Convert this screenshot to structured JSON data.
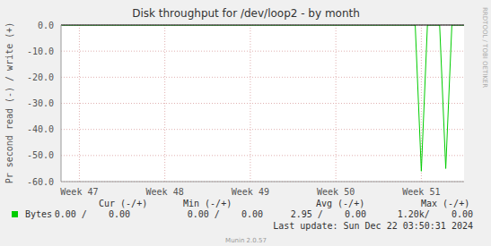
{
  "chart_data": {
    "type": "line",
    "title": "Disk throughput for /dev/loop2 - by month",
    "y_label": "Pr second read (-) / write (+)",
    "categories": [
      null,
      null,
      null,
      "Week 47",
      null,
      null,
      null,
      null,
      null,
      null,
      null,
      null,
      null,
      null,
      null,
      null,
      null,
      "Week 48",
      null,
      null,
      null,
      null,
      null,
      null,
      null,
      null,
      null,
      null,
      null,
      null,
      null,
      "Week 49",
      null,
      null,
      null,
      null,
      null,
      null,
      null,
      null,
      null,
      null,
      null,
      null,
      null,
      "Week 50",
      null,
      null,
      null,
      null,
      null,
      null,
      null,
      null,
      null,
      null,
      null,
      null,
      null,
      "Week 51",
      null,
      null,
      null,
      null,
      null,
      null,
      null
    ],
    "series": [
      {
        "name": "Bytes",
        "color": "#00cc00",
        "values": [
          0,
          0,
          0,
          0,
          0,
          0,
          0,
          0,
          0,
          0,
          0,
          0,
          0,
          0,
          0,
          0,
          0,
          0,
          0,
          0,
          0,
          0,
          0,
          0,
          0,
          0,
          0,
          0,
          0,
          0,
          0,
          0,
          0,
          0,
          0,
          0,
          0,
          0,
          0,
          0,
          0,
          0,
          0,
          0,
          0,
          0,
          0,
          0,
          0,
          0,
          0,
          0,
          0,
          0,
          0,
          0,
          0,
          0,
          0,
          -56,
          0,
          0,
          0,
          -55,
          0,
          0,
          0
        ]
      }
    ],
    "ylim": [
      -60,
      0
    ],
    "yticks": [
      {
        "value": 0,
        "label": "0.0"
      },
      {
        "value": -10,
        "label": "-10.0"
      },
      {
        "value": -20,
        "label": "-20.0"
      },
      {
        "value": -30,
        "label": "-30.0"
      },
      {
        "value": -40,
        "label": "-40.0"
      },
      {
        "value": -50,
        "label": "-50.0"
      },
      {
        "value": -60,
        "label": "-60.0"
      }
    ],
    "grid": true,
    "legend_stats": {
      "headers": [
        "Cur (-/+)",
        "Min (-/+)",
        "Avg (-/+)",
        "Max (-/+)"
      ],
      "values": [
        "0.00 /    0.00",
        "0.00 /    0.00",
        "2.95 /    0.00",
        "1.20k/    0.00"
      ]
    },
    "annotations": [
      "Last update: Sun Dec 22 03:50:31 2024",
      "Munin 2.0.57",
      "RRDTOOL / TOBI OETIKER"
    ]
  }
}
